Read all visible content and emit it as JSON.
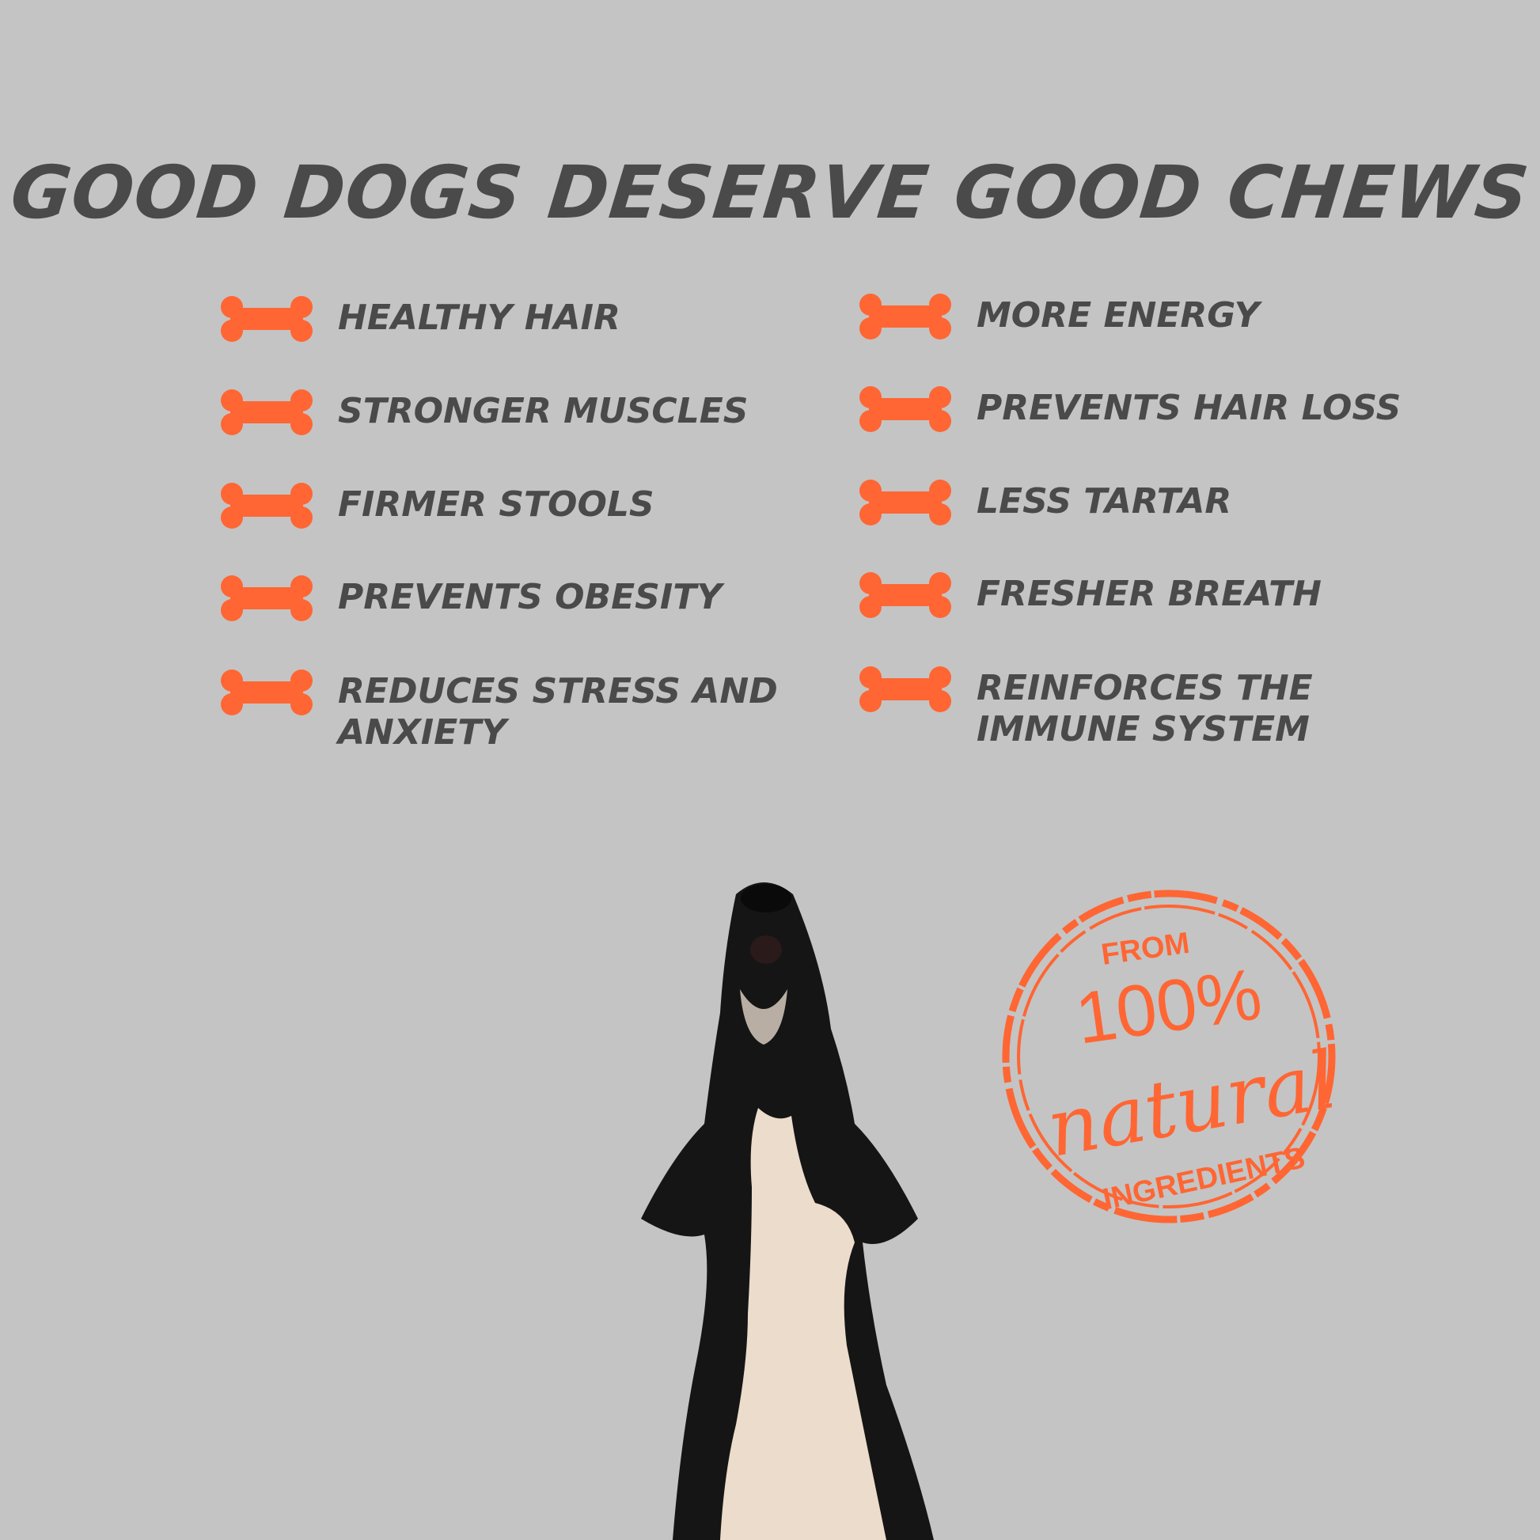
{
  "title": "GOOD DOGS DESERVE GOOD CHEWS",
  "colors": {
    "background": "#c4c4c4",
    "accent": "#ff6633",
    "text": "#4a4a4a"
  },
  "benefits_left": [
    {
      "label": "Healthy hair",
      "icon": "bone-icon"
    },
    {
      "label": "Stronger muscles",
      "icon": "bone-icon"
    },
    {
      "label": "Firmer stools",
      "icon": "bone-icon"
    },
    {
      "label": "Prevents obesity",
      "icon": "bone-icon"
    },
    {
      "label": "Reduces stress and anxiety",
      "icon": "bone-icon"
    }
  ],
  "benefits_right": [
    {
      "label": "More energy",
      "icon": "bone-icon"
    },
    {
      "label": "Prevents hair loss",
      "icon": "bone-icon"
    },
    {
      "label": "Less tartar",
      "icon": "bone-icon"
    },
    {
      "label": "Fresher breath",
      "icon": "bone-icon"
    },
    {
      "label": "Reinforces the immune system",
      "icon": "bone-icon"
    }
  ],
  "stamp": {
    "top": "FROM",
    "percent": "100%",
    "script": "natural",
    "bottom": "INGREDIENTS"
  }
}
